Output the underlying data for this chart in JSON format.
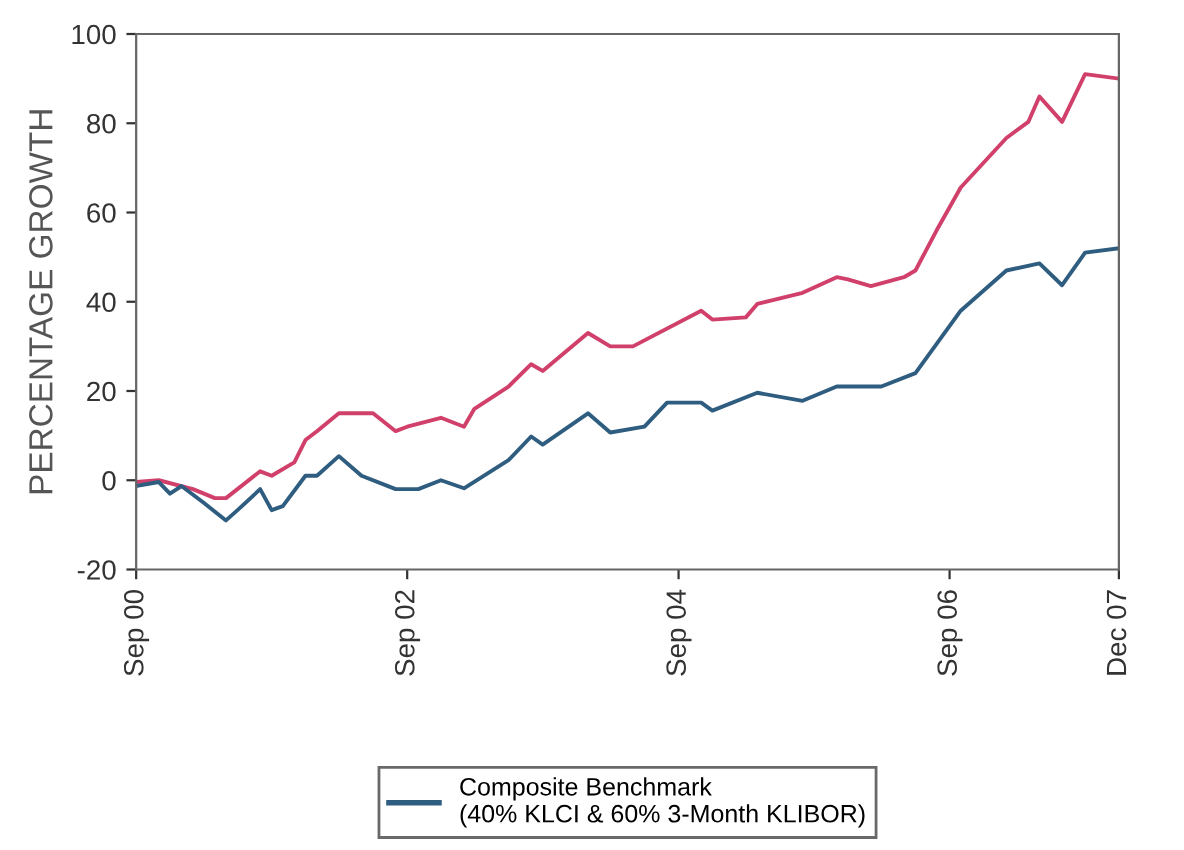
{
  "chart_data": {
    "type": "line",
    "ylabel": "PERCENTAGE GROWTH",
    "ylim": [
      -20,
      100
    ],
    "yticks": [
      -20,
      0,
      20,
      40,
      60,
      80,
      100
    ],
    "xlim": [
      "2000-09",
      "2007-12"
    ],
    "xticks": [
      {
        "value": "2000-09",
        "label": "Sep 00"
      },
      {
        "value": "2002-09",
        "label": "Sep 02"
      },
      {
        "value": "2004-09",
        "label": "Sep 04"
      },
      {
        "value": "2006-09",
        "label": "Sep 06"
      },
      {
        "value": "2007-12",
        "label": "Dec 07"
      }
    ],
    "grid": false,
    "legend": "bottom",
    "line_style": "solid",
    "marker": "none",
    "series": [
      {
        "color": "#d0406a",
        "x": [
          "2000-09",
          "2000-11",
          "2001-02",
          "2001-04",
          "2001-05",
          "2001-08",
          "2001-09",
          "2001-11",
          "2001-12",
          "2002-01",
          "2002-03",
          "2002-06",
          "2002-08",
          "2002-09",
          "2002-12",
          "2003-02",
          "2003-03",
          "2003-06",
          "2003-08",
          "2003-09",
          "2004-01",
          "2004-03",
          "2004-05",
          "2004-11",
          "2004-12",
          "2005-03",
          "2005-04",
          "2005-08",
          "2005-11",
          "2005-12",
          "2006-02",
          "2006-05",
          "2006-06",
          "2006-08",
          "2006-10",
          "2007-02",
          "2007-04",
          "2007-05",
          "2007-07",
          "2007-09",
          "2007-12"
        ],
        "values": [
          -0.4,
          0,
          -2,
          -4,
          -4,
          2,
          1,
          4,
          9,
          11,
          15,
          15,
          11,
          12,
          14,
          12,
          16,
          21,
          26,
          24.5,
          33,
          30,
          30,
          38,
          36,
          36.5,
          39.5,
          42,
          45.5,
          45,
          43.5,
          45.5,
          47,
          56.6,
          65.6,
          76.7,
          80.3,
          86,
          80.3,
          91,
          90
        ]
      },
      {
        "name": "Composite Benchmark\n(40% KLCI & 60% 3-Month KLIBOR)",
        "color": "#2f5d80",
        "x": [
          "2000-09",
          "2000-11",
          "2000-12",
          "2001-01",
          "2001-03",
          "2001-05",
          "2001-06",
          "2001-08",
          "2001-09",
          "2001-10",
          "2001-12",
          "2002-01",
          "2002-03",
          "2002-05",
          "2002-08",
          "2002-10",
          "2002-12",
          "2003-02",
          "2003-06",
          "2003-08",
          "2003-09",
          "2004-01",
          "2004-03",
          "2004-06",
          "2004-08",
          "2004-11",
          "2004-12",
          "2005-04",
          "2005-08",
          "2005-11",
          "2006-03",
          "2006-06",
          "2006-08",
          "2006-10",
          "2007-02",
          "2007-05",
          "2007-07",
          "2007-09",
          "2007-12"
        ],
        "values": [
          -1.3,
          -0.4,
          -3,
          -1.3,
          -5,
          -9,
          -6.7,
          -2,
          -6.7,
          -5.8,
          1,
          1,
          5.4,
          1,
          -2,
          -2,
          0,
          -1.8,
          4.5,
          9.8,
          8,
          15,
          10.7,
          12,
          17.4,
          17.4,
          15.6,
          19.6,
          17.8,
          21,
          21,
          24,
          31,
          38,
          47,
          48.6,
          43.7,
          51,
          52
        ]
      }
    ]
  }
}
